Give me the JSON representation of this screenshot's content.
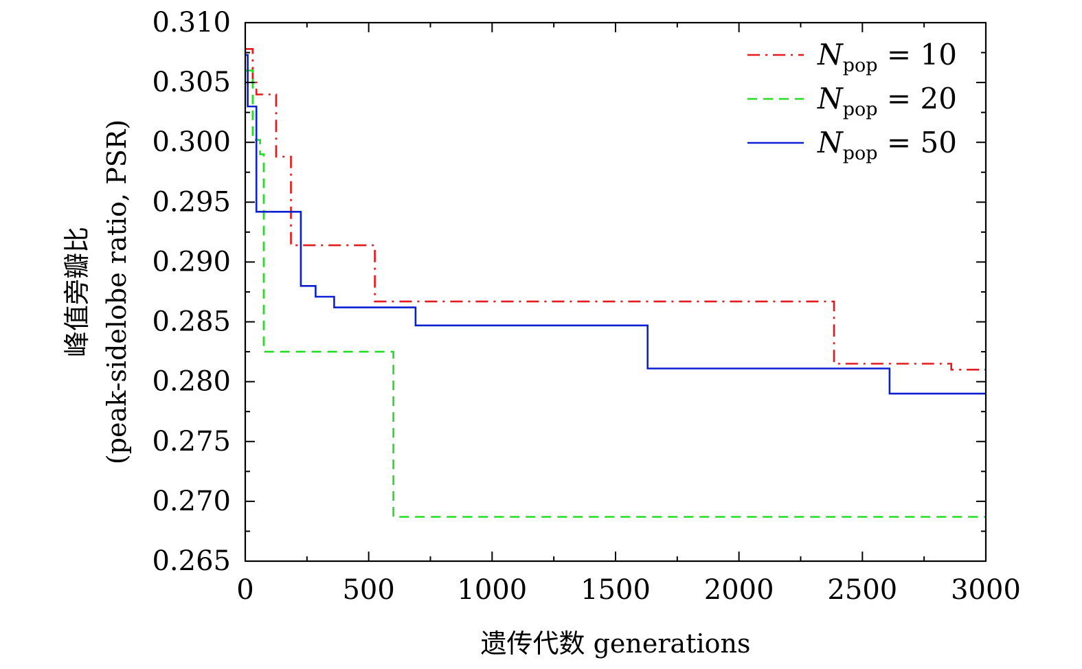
{
  "chart_data": {
    "type": "line",
    "xlabel": "遗传代数 generations",
    "ylabel_line1": "峰值旁瓣比",
    "ylabel_line2": "(peak-sidelobe ratio,  PSR)",
    "xlim": [
      0,
      3000
    ],
    "ylim": [
      0.265,
      0.31
    ],
    "x_ticks": [
      0,
      500,
      1000,
      1500,
      2000,
      2500,
      3000
    ],
    "x_tick_labels": [
      "0",
      "500",
      "1000",
      "1500",
      "2000",
      "2500",
      "3000"
    ],
    "y_ticks": [
      0.265,
      0.27,
      0.275,
      0.28,
      0.285,
      0.29,
      0.295,
      0.3,
      0.305,
      0.31
    ],
    "y_tick_labels": [
      "0.265",
      "0.270",
      "0.275",
      "0.280",
      "0.285",
      "0.290",
      "0.295",
      "0.300",
      "0.305",
      "0.310"
    ],
    "grid": false,
    "legend_position": "top-right",
    "step": true,
    "series": [
      {
        "name_main": "N",
        "name_sub": "pop",
        "name_rest": " = 10",
        "color": "#e31a1c",
        "dash": "18 8 3 8",
        "x": [
          0,
          30,
          45,
          125,
          185,
          525,
          2385,
          2860,
          3000
        ],
        "y": [
          0.3078,
          0.305,
          0.304,
          0.2988,
          0.2914,
          0.2867,
          0.2815,
          0.281,
          0.281
        ]
      },
      {
        "name_main": "N",
        "name_sub": "pop",
        "name_rest": " = 20",
        "color": "#22dd22",
        "dash": "14 9",
        "x": [
          0,
          30,
          60,
          75,
          600,
          3000
        ],
        "y": [
          0.306,
          0.3002,
          0.299,
          0.2825,
          0.2687,
          0.2687
        ]
      },
      {
        "name_main": "N",
        "name_sub": "pop",
        "name_rest": " = 50",
        "color": "#0a1fcf",
        "dash": "",
        "x": [
          0,
          10,
          45,
          225,
          285,
          360,
          690,
          1630,
          2610,
          3000
        ],
        "y": [
          0.3073,
          0.303,
          0.2942,
          0.288,
          0.2871,
          0.2862,
          0.2847,
          0.2811,
          0.279,
          0.279
        ]
      }
    ]
  }
}
